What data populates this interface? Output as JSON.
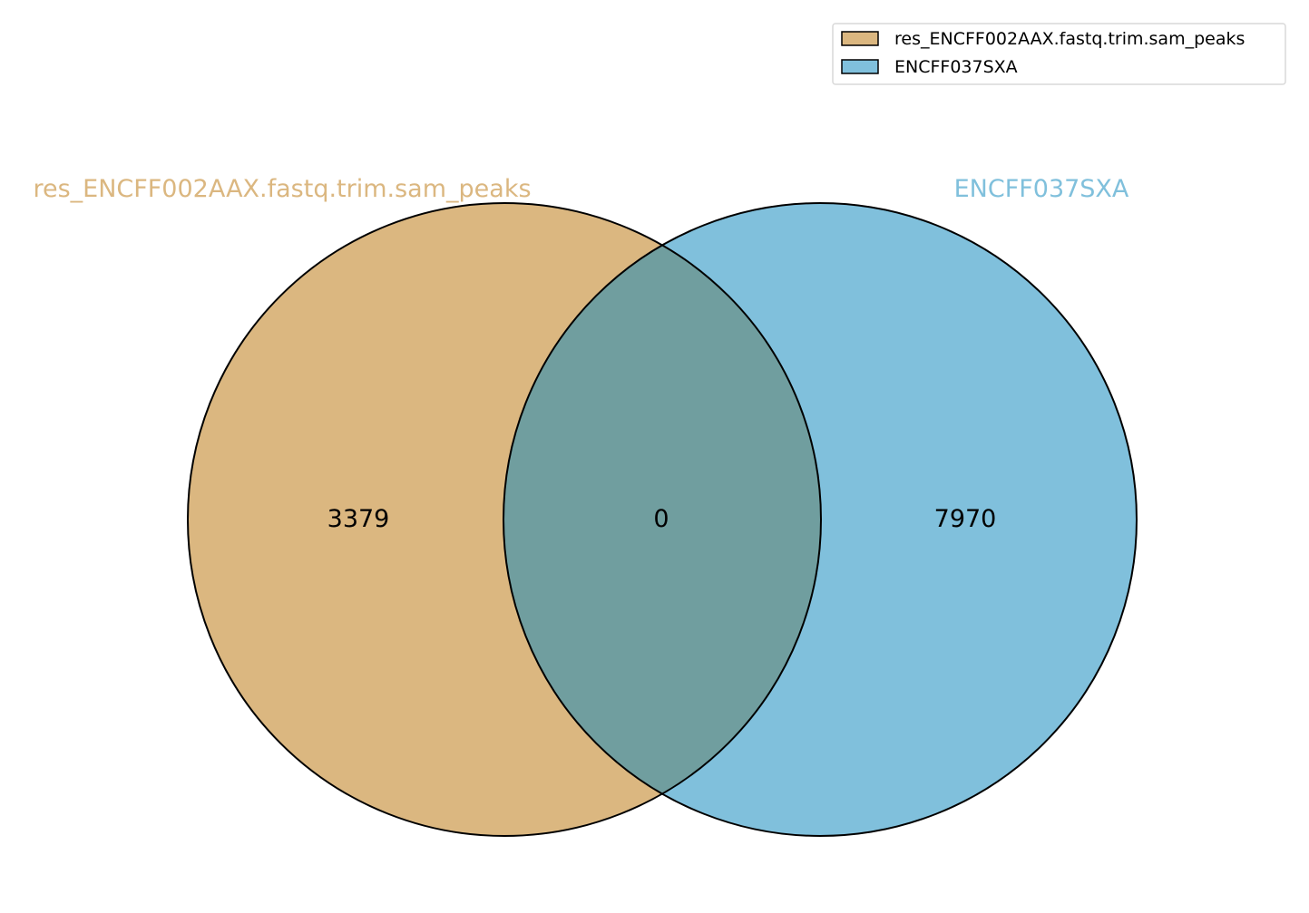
{
  "chart_data": {
    "type": "venn",
    "sets": [
      {
        "name": "res_ENCFF002AAX.fastq.trim.sam_peaks",
        "color": "#dbb780"
      },
      {
        "name": "ENCFF037SXA",
        "color": "#80c0dc"
      }
    ],
    "regions": {
      "only_a": "3379",
      "intersection": "0",
      "only_b": "7970"
    },
    "overlap_color": "#709e9f",
    "legend_placement": "top-right"
  }
}
